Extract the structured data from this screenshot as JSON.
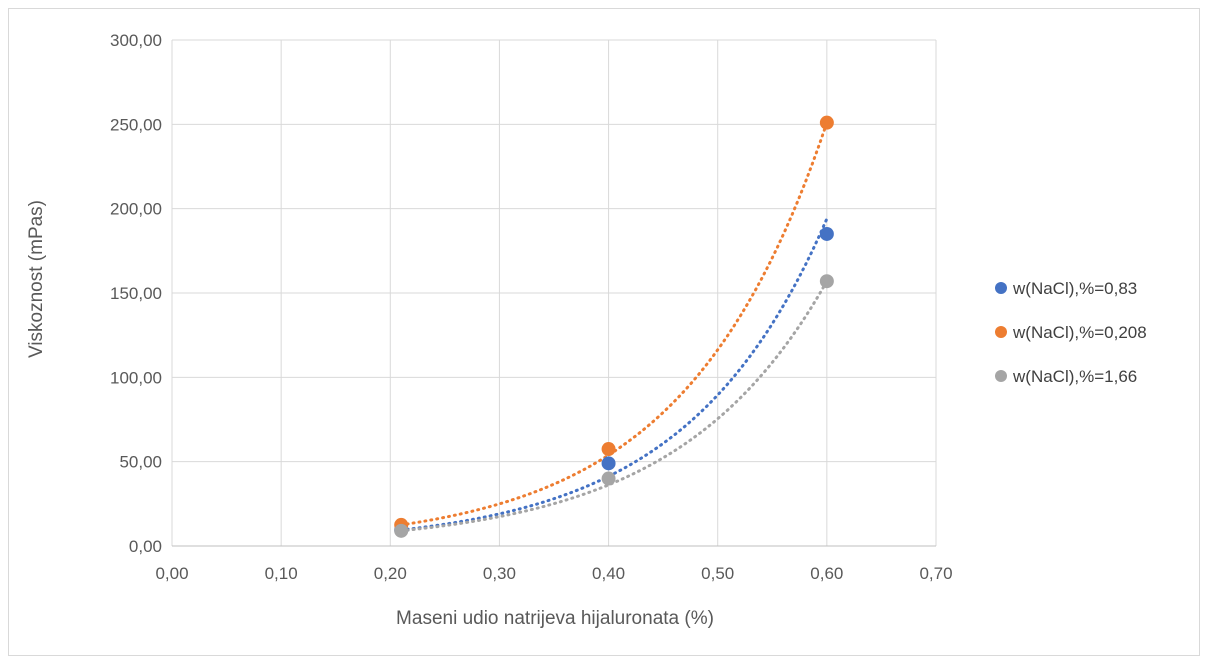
{
  "chart_data": {
    "type": "scatter",
    "title": "",
    "xlabel": "Maseni udio natrijeva hijaluronata (%)",
    "ylabel": "Viskoznost (mPas)",
    "xlim": [
      0,
      0.7
    ],
    "ylim": [
      0,
      300
    ],
    "x_ticks": [
      0,
      0.1,
      0.2,
      0.3,
      0.4,
      0.5,
      0.6,
      0.7
    ],
    "x_tick_labels": [
      "0,00",
      "0,10",
      "0,20",
      "0,30",
      "0,40",
      "0,50",
      "0,60",
      "0,70"
    ],
    "y_ticks": [
      0,
      50,
      100,
      150,
      200,
      250,
      300
    ],
    "y_tick_labels": [
      "0,00",
      "50,00",
      "100,00",
      "150,00",
      "200,00",
      "250,00",
      "300,00"
    ],
    "grid": true,
    "legend_position": "right",
    "trendline": "exponential, dotted",
    "series": [
      {
        "name": "w(NaCl),%=0,83",
        "color": "#4472c4",
        "x": [
          0.21,
          0.4,
          0.6
        ],
        "y": [
          9.5,
          49,
          185
        ],
        "trend_end": 194
      },
      {
        "name": "w(NaCl),%=0,208",
        "color": "#ed7d31",
        "x": [
          0.21,
          0.4,
          0.6
        ],
        "y": [
          12.5,
          57.5,
          251
        ],
        "trend_end": 251
      },
      {
        "name": "w(NaCl),%=1,66",
        "color": "#a5a5a5",
        "x": [
          0.21,
          0.4,
          0.6
        ],
        "y": [
          9,
          40,
          157
        ],
        "trend_end": 157
      }
    ]
  }
}
